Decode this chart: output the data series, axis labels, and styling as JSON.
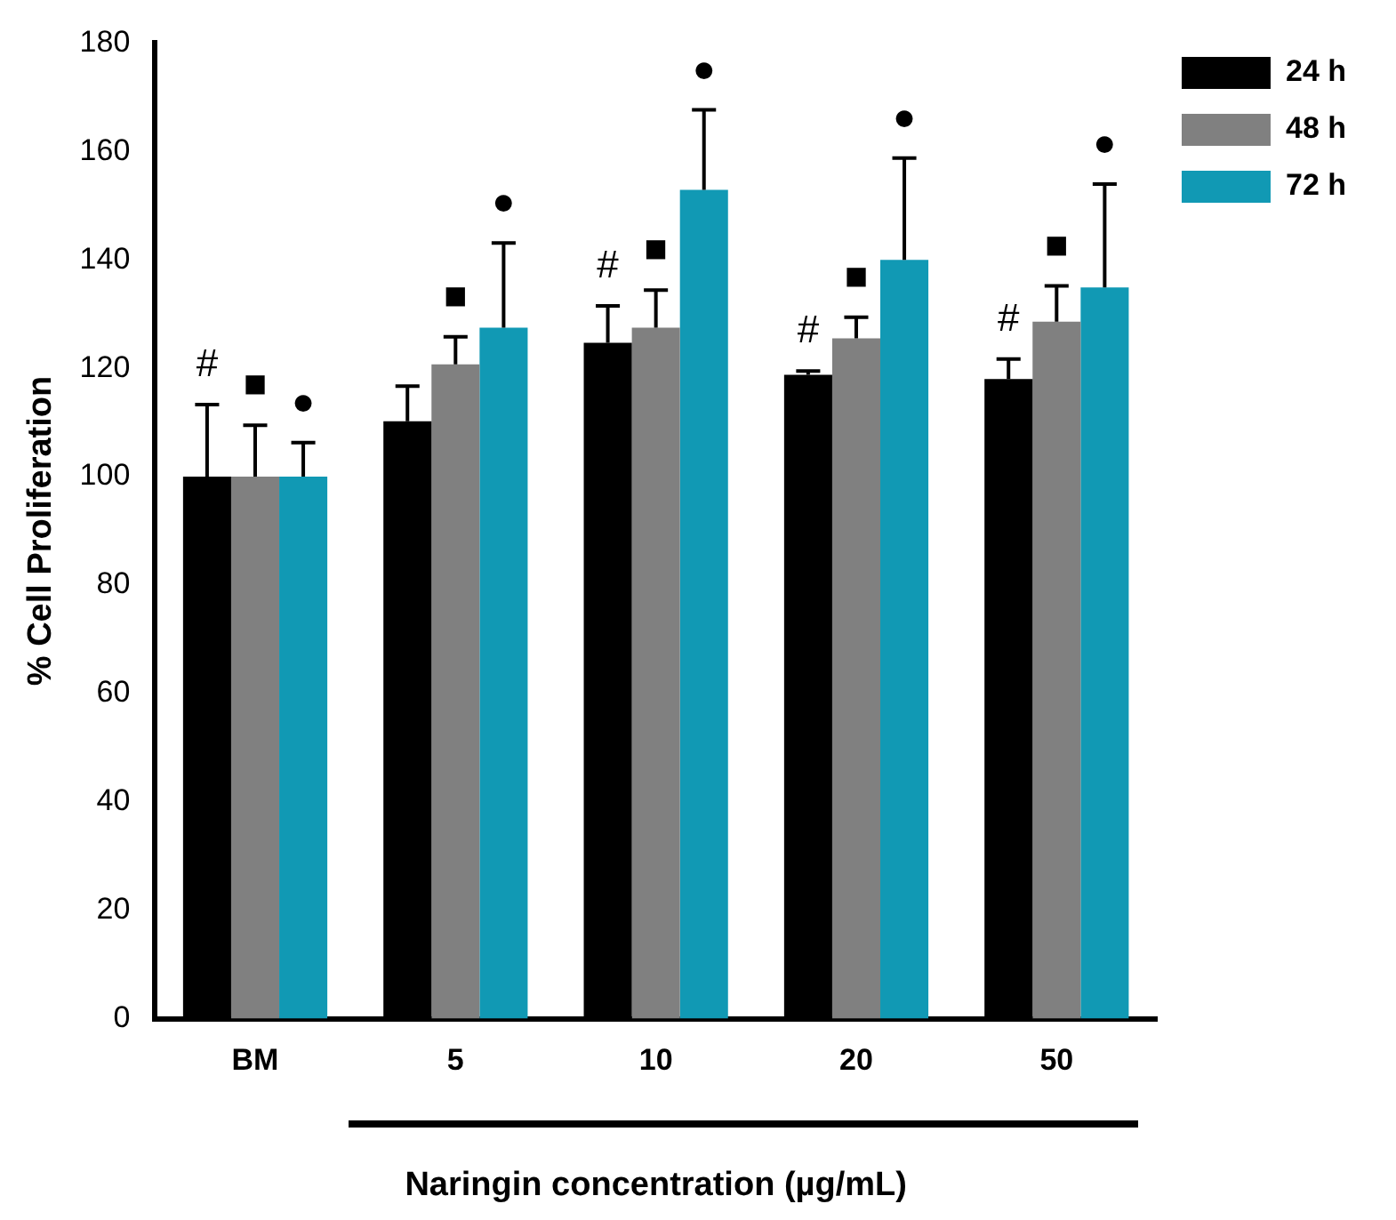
{
  "chart_data": {
    "type": "bar",
    "xlabel": "Naringin concentration (µg/mL)",
    "ylabel": "% Cell Proliferation",
    "categories": [
      "BM",
      "5",
      "10",
      "20",
      "50"
    ],
    "series": [
      {
        "name": "24 h",
        "color": "#000000",
        "values": [
          100,
          110.2,
          124.7,
          118.8,
          118
        ],
        "errors": [
          [
            100,
            113.3
          ],
          [
            110.2,
            116.7
          ],
          [
            124.7,
            131.5
          ],
          [
            118.8,
            119.5
          ],
          [
            118,
            121.7
          ]
        ],
        "value_labels": [
          "#",
          null,
          "#",
          "#",
          "#"
        ]
      },
      {
        "name": "48 h",
        "color": "#808080",
        "values": [
          100,
          120.7,
          127.5,
          125.5,
          128.6
        ],
        "errors": [
          [
            100,
            109.5
          ],
          [
            120.7,
            125.8
          ],
          [
            127.5,
            134.4
          ],
          [
            125.5,
            129.4
          ],
          [
            128.6,
            135.2
          ]
        ],
        "value_labels": [
          "■",
          "■",
          "■",
          "■",
          "■"
        ]
      },
      {
        "name": "72 h",
        "color": "#1199b4",
        "values": [
          100,
          127.5,
          152.9,
          140,
          134.9
        ],
        "errors": [
          [
            100,
            106.3
          ],
          [
            127.5,
            143.1
          ],
          [
            152.9,
            167.7
          ],
          [
            140,
            158.8
          ],
          [
            134.9,
            154
          ]
        ],
        "value_labels": [
          "●",
          "●",
          "●",
          "●",
          "●"
        ]
      }
    ],
    "ylim": [
      0,
      180
    ],
    "yticks": [
      0,
      20,
      40,
      60,
      80,
      100,
      120,
      140,
      160,
      180
    ],
    "grid": false,
    "legend": "top right"
  }
}
